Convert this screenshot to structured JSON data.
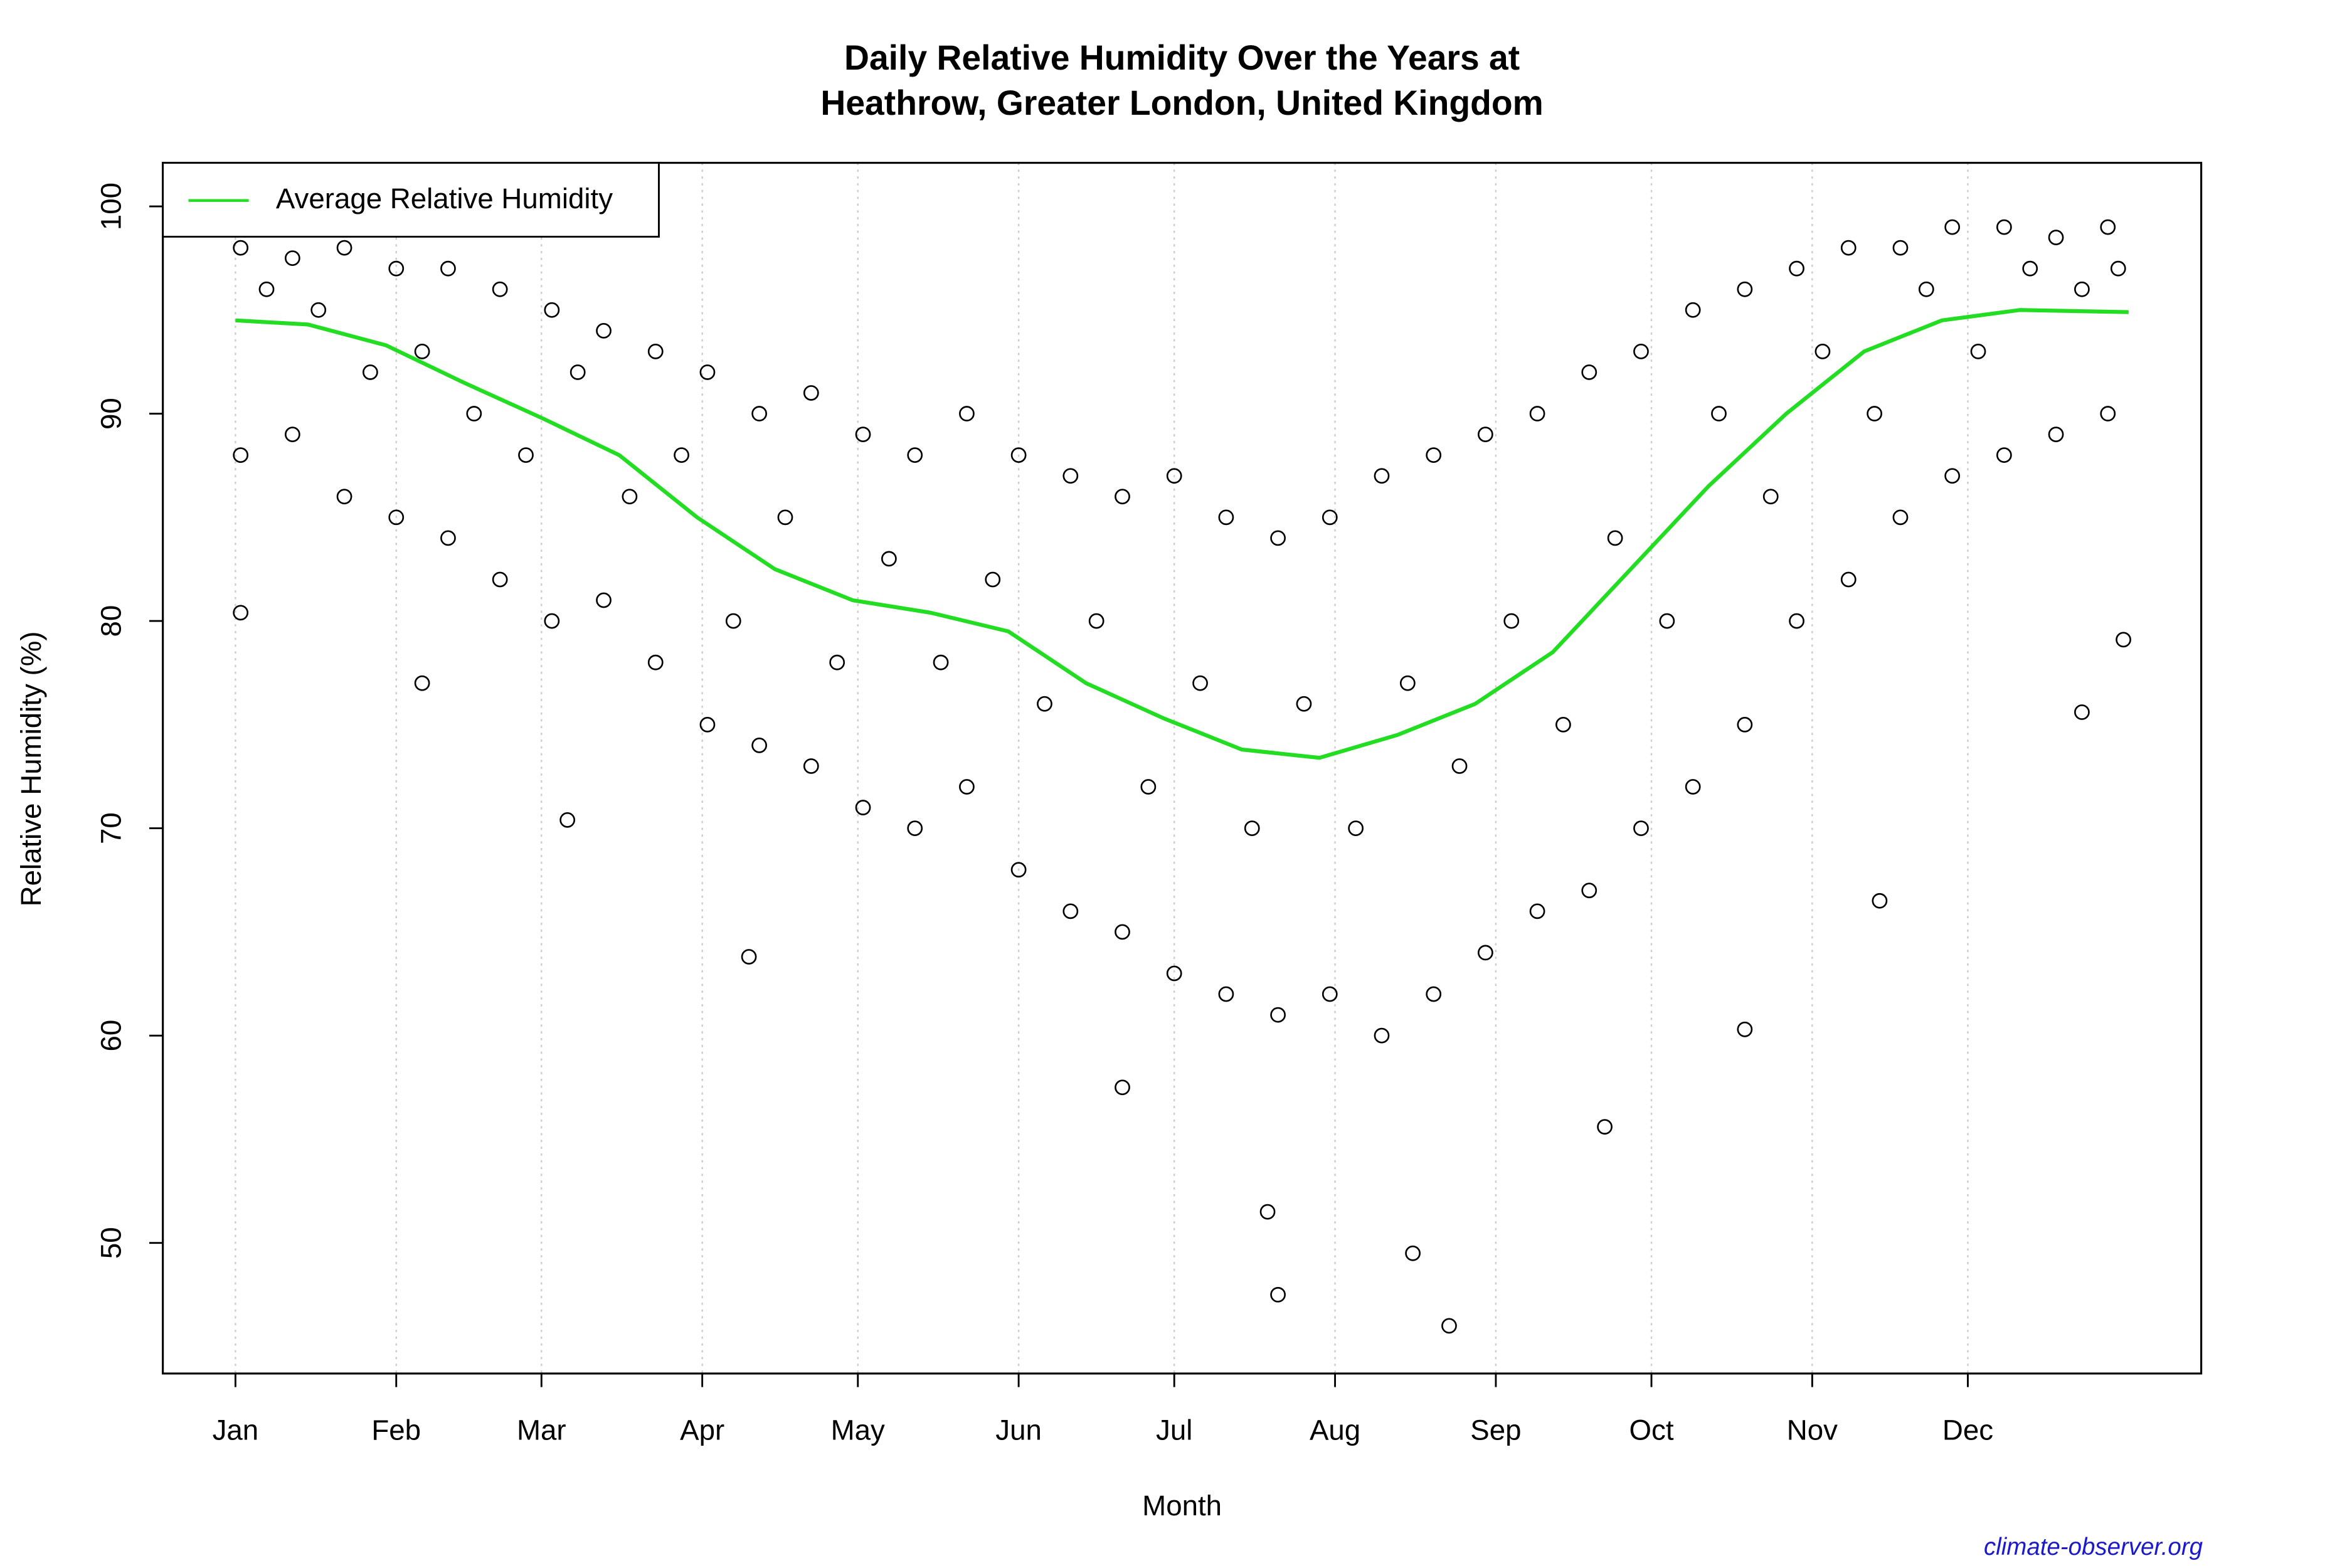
{
  "chart_data": {
    "type": "scatter",
    "title": [
      "Daily Relative Humidity Over the Years at",
      "Heathrow, Greater London, United Kingdom"
    ],
    "x_label": "Month",
    "y_label": "Relative Humidity  (%)",
    "source": "climate-observer.org",
    "xlim": [
      -13,
      380
    ],
    "ylim": [
      43.7,
      102.1
    ],
    "xticks": [
      {
        "value": 1,
        "label": "Jan"
      },
      {
        "value": 32,
        "label": "Feb"
      },
      {
        "value": 60,
        "label": "Mar"
      },
      {
        "value": 91,
        "label": "Apr"
      },
      {
        "value": 121,
        "label": "May"
      },
      {
        "value": 152,
        "label": "Jun"
      },
      {
        "value": 182,
        "label": "Jul"
      },
      {
        "value": 213,
        "label": "Aug"
      },
      {
        "value": 244,
        "label": "Sep"
      },
      {
        "value": 274,
        "label": "Oct"
      },
      {
        "value": 305,
        "label": "Nov"
      },
      {
        "value": 335,
        "label": "Dec"
      }
    ],
    "yticks": [
      50,
      60,
      70,
      80,
      90,
      100
    ],
    "grid": "x",
    "legend": "top-left",
    "series": [
      {
        "type": "scatter",
        "color": "#000000",
        "x": [
          2,
          12,
          22,
          32,
          42,
          52,
          62,
          72,
          82,
          92,
          102,
          112,
          122,
          132,
          142,
          152,
          162,
          172,
          182,
          192,
          202,
          212,
          222,
          232,
          242,
          252,
          262,
          272,
          282,
          292,
          302,
          312,
          322,
          332,
          342,
          352,
          362,
          2,
          12,
          22,
          32,
          42,
          52,
          62,
          72,
          82,
          92,
          102,
          112,
          122,
          132,
          142,
          152,
          162,
          172,
          182,
          192,
          202,
          212,
          222,
          232,
          242,
          252,
          262,
          272,
          282,
          292,
          302,
          312,
          322,
          332,
          342,
          352,
          362,
          7,
          17,
          27,
          37,
          47,
          57,
          67,
          77,
          87,
          97,
          107,
          117,
          127,
          137,
          147,
          157,
          167,
          177,
          187,
          197,
          207,
          217,
          227,
          237,
          247,
          257,
          267,
          277,
          287,
          297,
          307,
          317,
          327,
          337,
          347,
          357,
          364,
          2,
          37,
          65,
          100,
          172,
          200,
          202,
          228,
          235,
          265,
          292,
          318,
          357,
          365
        ],
        "values": [
          98,
          97.5,
          98,
          97,
          97,
          96,
          95,
          94,
          93,
          92,
          90,
          91,
          89,
          88,
          90,
          88,
          87,
          86,
          87,
          85,
          84,
          85,
          87,
          88,
          89,
          90,
          92,
          93,
          95,
          96,
          97,
          98,
          98,
          99,
          99,
          98.5,
          99,
          88,
          89,
          86,
          85,
          84,
          82,
          80,
          81,
          78,
          75,
          74,
          73,
          71,
          70,
          72,
          68,
          66,
          65,
          63,
          62,
          61,
          62,
          60,
          62,
          64,
          66,
          67,
          70,
          72,
          75,
          80,
          82,
          85,
          87,
          88,
          89,
          90,
          96,
          95,
          92,
          93,
          90,
          88,
          92,
          86,
          88,
          80,
          85,
          78,
          83,
          78,
          82,
          76,
          80,
          72,
          77,
          70,
          76,
          70,
          77,
          73,
          80,
          75,
          84,
          80,
          90,
          86,
          93,
          90,
          96,
          93,
          97,
          96,
          97,
          80.4,
          77,
          70.4,
          63.8,
          57.5,
          51.5,
          47.5,
          49.5,
          46,
          55.6,
          60.3,
          66.5,
          75.6,
          79.1
        ]
      },
      {
        "type": "line",
        "name": "Average Relative Humidity",
        "color": "#22dd22",
        "x": [
          1,
          15,
          30,
          45,
          60,
          75,
          90,
          105,
          120,
          135,
          150,
          165,
          180,
          195,
          210,
          225,
          240,
          255,
          270,
          285,
          300,
          315,
          330,
          345,
          366
        ],
        "values": [
          94.5,
          94.3,
          93.3,
          91.5,
          89.8,
          88,
          85,
          82.5,
          81,
          80.4,
          79.5,
          77,
          75.3,
          73.8,
          73.4,
          74.5,
          76,
          78.5,
          82.5,
          86.5,
          90,
          93,
          94.5,
          95,
          94.9
        ]
      }
    ]
  }
}
